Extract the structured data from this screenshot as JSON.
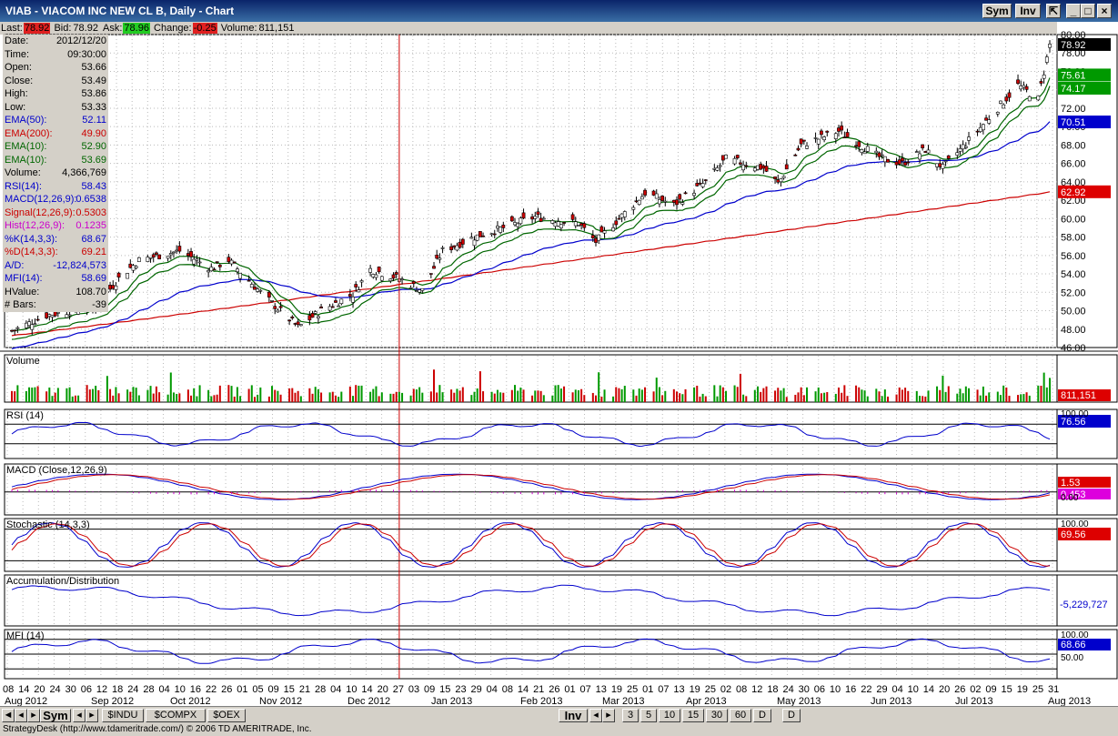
{
  "window": {
    "title": "VIAB - VIACOM INC NEW CL B, Daily - Chart",
    "sym_label": "Sym",
    "inv_label": "Inv"
  },
  "quote": {
    "last_label": "Last:",
    "last": "78.92",
    "bid_label": "Bid:",
    "bid": "78.92",
    "ask_label": "Ask:",
    "ask": "78.96",
    "change_label": "Change:",
    "change": "-0.25",
    "volume_label": "Volume:",
    "volume": "811,151"
  },
  "info_panel": [
    {
      "k": "Date:",
      "v": "2012/12/20",
      "color": "#000000"
    },
    {
      "k": "Time:",
      "v": "09:30:00",
      "color": "#000000"
    },
    {
      "k": "Open:",
      "v": "53.66",
      "color": "#000000"
    },
    {
      "k": "Close:",
      "v": "53.49",
      "color": "#000000"
    },
    {
      "k": "High:",
      "v": "53.86",
      "color": "#000000"
    },
    {
      "k": "Low:",
      "v": "53.33",
      "color": "#000000"
    },
    {
      "k": "EMA(50):",
      "v": "52.11",
      "color": "#0000cc"
    },
    {
      "k": "EMA(200):",
      "v": "49.90",
      "color": "#cc0000"
    },
    {
      "k": "EMA(10):",
      "v": "52.90",
      "color": "#006600"
    },
    {
      "k": "EMA(10):",
      "v": "53.69",
      "color": "#006600"
    },
    {
      "k": "Volume:",
      "v": "4,366,769",
      "color": "#000000"
    },
    {
      "k": "RSI(14):",
      "v": "58.43",
      "color": "#0000cc"
    },
    {
      "k": "MACD(12,26,9):",
      "v": "0.6538",
      "color": "#0000cc"
    },
    {
      "k": "Signal(12,26,9):",
      "v": "0.5303",
      "color": "#cc0000"
    },
    {
      "k": "Hist(12,26,9):",
      "v": "0.1235",
      "color": "#cc00cc"
    },
    {
      "k": "%K(14,3,3):",
      "v": "68.67",
      "color": "#0000cc"
    },
    {
      "k": "%D(14,3,3):",
      "v": "69.21",
      "color": "#cc0000"
    },
    {
      "k": "A/D:",
      "v": "-12,824,573",
      "color": "#0000cc"
    },
    {
      "k": "MFI(14):",
      "v": "58.69",
      "color": "#0000cc"
    },
    {
      "k": "HValue:",
      "v": "108.70",
      "color": "#000000"
    },
    {
      "k": "# Bars:",
      "v": "-39",
      "color": "#000000"
    }
  ],
  "panels": {
    "volume": "Volume",
    "rsi": "RSI (14)",
    "macd": "MACD (Close,12,26,9)",
    "stoch": "Stochastic (14,3,3)",
    "ad": "Accumulation/Distribution",
    "mfi": "MFI (14)"
  },
  "price_axis": [
    "80.00",
    "78.00",
    "76.00",
    "74.00",
    "72.00",
    "70.00",
    "68.00",
    "66.00",
    "64.00",
    "62.00",
    "60.00",
    "58.00",
    "56.00",
    "54.00",
    "52.00",
    "50.00",
    "48.00",
    "46.00"
  ],
  "price_tags": [
    {
      "text": "78.92",
      "bg": "#000000",
      "fg": "#ffffff",
      "value": 78.92
    },
    {
      "text": "75.61",
      "bg": "#009900",
      "fg": "#ffffff",
      "value": 75.61
    },
    {
      "text": "74.17",
      "bg": "#009900",
      "fg": "#ffffff",
      "value": 74.17
    },
    {
      "text": "70.51",
      "bg": "#0000cc",
      "fg": "#ffffff",
      "value": 70.51
    },
    {
      "text": "62.92",
      "bg": "#dd0000",
      "fg": "#ffffff",
      "value": 62.92
    }
  ],
  "volume_tag": {
    "text": "811,151",
    "bg": "#dd0000",
    "fg": "#ffffff"
  },
  "rsi_axis": [
    "100.00"
  ],
  "rsi_tag": {
    "text": "76.56",
    "bg": "#0000cc",
    "fg": "#ffffff"
  },
  "macd_tags": [
    {
      "text": "1.53",
      "bg": "#dd0000",
      "fg": "#ffffff"
    },
    {
      "text": "0.453",
      "bg": "#dd00dd",
      "fg": "#ffffff"
    }
  ],
  "macd_axis": [
    "0.00"
  ],
  "stoch_axis": [
    "100.00"
  ],
  "stoch_tag": {
    "text": "69.56",
    "bg": "#dd0000",
    "fg": "#ffffff"
  },
  "ad_tag": {
    "text": "-5,229,727",
    "bg": "#ffffff",
    "fg": "#0000cc"
  },
  "mfi_axis": [
    "100.00",
    "50.00"
  ],
  "mfi_tag": {
    "text": "68.66",
    "bg": "#0000cc",
    "fg": "#ffffff"
  },
  "date_ticks": [
    "08",
    "14",
    "20",
    "24",
    "30",
    "06",
    "12",
    "18",
    "24",
    "28",
    "04",
    "10",
    "16",
    "22",
    "26",
    "01",
    "05",
    "09",
    "15",
    "21",
    "28",
    "04",
    "10",
    "14",
    "20",
    "27",
    "03",
    "09",
    "15",
    "23",
    "29",
    "04",
    "08",
    "14",
    "21",
    "26",
    "01",
    "07",
    "13",
    "19",
    "25",
    "01",
    "07",
    "13",
    "19",
    "25",
    "02",
    "08",
    "12",
    "18",
    "24",
    "30",
    "06",
    "10",
    "16",
    "22",
    "29",
    "04",
    "10",
    "14",
    "20",
    "26",
    "02",
    "09",
    "15",
    "19",
    "25",
    "31"
  ],
  "month_labels": [
    "Aug 2012",
    "Sep 2012",
    "Oct 2012",
    "Nov 2012",
    "Dec 2012",
    "Jan 2013",
    "Feb 2013",
    "Mar 2013",
    "Apr 2013",
    "May 2013",
    "Jun 2013",
    "Jul 2013",
    "Aug 2013"
  ],
  "bottom": {
    "sym": "Sym",
    "symbols": [
      "$INDU",
      "$COMPX",
      "$OEX"
    ],
    "inv": "Inv",
    "intervals": [
      "3",
      "5",
      "10",
      "15",
      "30",
      "60",
      "D",
      "D"
    ]
  },
  "status": "StrategyDesk (http://www.tdameritrade.com/) © 2006 TD AMERITRADE, Inc.",
  "chart_data": {
    "type": "candlestick",
    "title": "VIAB - VIACOM INC NEW CL B, Daily - Chart",
    "x_range": [
      "2012-08-08",
      "2013-08-02"
    ],
    "ylim": [
      46,
      80
    ],
    "close_path": [
      {
        "date": "2012-08-08",
        "value": 47.8
      },
      {
        "date": "2012-08-20",
        "value": 49.5
      },
      {
        "date": "2012-09-06",
        "value": 50.5
      },
      {
        "date": "2012-09-14",
        "value": 53.5
      },
      {
        "date": "2012-09-21",
        "value": 55.5
      },
      {
        "date": "2012-10-05",
        "value": 56.5
      },
      {
        "date": "2012-10-16",
        "value": 54.6
      },
      {
        "date": "2012-10-22",
        "value": 55.5
      },
      {
        "date": "2012-11-02",
        "value": 52.0
      },
      {
        "date": "2012-11-15",
        "value": 48.2
      },
      {
        "date": "2012-11-23",
        "value": 50.0
      },
      {
        "date": "2012-12-04",
        "value": 51.8
      },
      {
        "date": "2012-12-10",
        "value": 54.5
      },
      {
        "date": "2012-12-20",
        "value": 53.5
      },
      {
        "date": "2012-12-28",
        "value": 52.2
      },
      {
        "date": "2013-01-04",
        "value": 56.5
      },
      {
        "date": "2013-01-15",
        "value": 58.0
      },
      {
        "date": "2013-01-25",
        "value": 59.0
      },
      {
        "date": "2013-02-05",
        "value": 60.2
      },
      {
        "date": "2013-02-20",
        "value": 59.5
      },
      {
        "date": "2013-02-26",
        "value": 57.5
      },
      {
        "date": "2013-03-06",
        "value": 60.0
      },
      {
        "date": "2013-03-15",
        "value": 62.8
      },
      {
        "date": "2013-03-25",
        "value": 61.5
      },
      {
        "date": "2013-04-05",
        "value": 64.0
      },
      {
        "date": "2013-04-12",
        "value": 66.5
      },
      {
        "date": "2013-04-25",
        "value": 65.5
      },
      {
        "date": "2013-04-30",
        "value": 63.8
      },
      {
        "date": "2013-05-08",
        "value": 68.0
      },
      {
        "date": "2013-05-21",
        "value": 69.5
      },
      {
        "date": "2013-06-05",
        "value": 66.5
      },
      {
        "date": "2013-06-12",
        "value": 66.0
      },
      {
        "date": "2013-06-20",
        "value": 67.5
      },
      {
        "date": "2013-06-26",
        "value": 65.5
      },
      {
        "date": "2013-07-05",
        "value": 68.5
      },
      {
        "date": "2013-07-15",
        "value": 72.0
      },
      {
        "date": "2013-07-22",
        "value": 74.5
      },
      {
        "date": "2013-07-29",
        "value": 73.0
      },
      {
        "date": "2013-08-02",
        "value": 78.9
      }
    ],
    "series": [
      {
        "name": "EMA(50)",
        "color": "#0000cc",
        "last": 70.51
      },
      {
        "name": "EMA(200)",
        "color": "#cc0000",
        "last": 62.92
      },
      {
        "name": "EMA(10)",
        "color": "#006600",
        "last": 74.17
      },
      {
        "name": "EMA(10)",
        "color": "#006600",
        "last": 75.61
      }
    ]
  }
}
